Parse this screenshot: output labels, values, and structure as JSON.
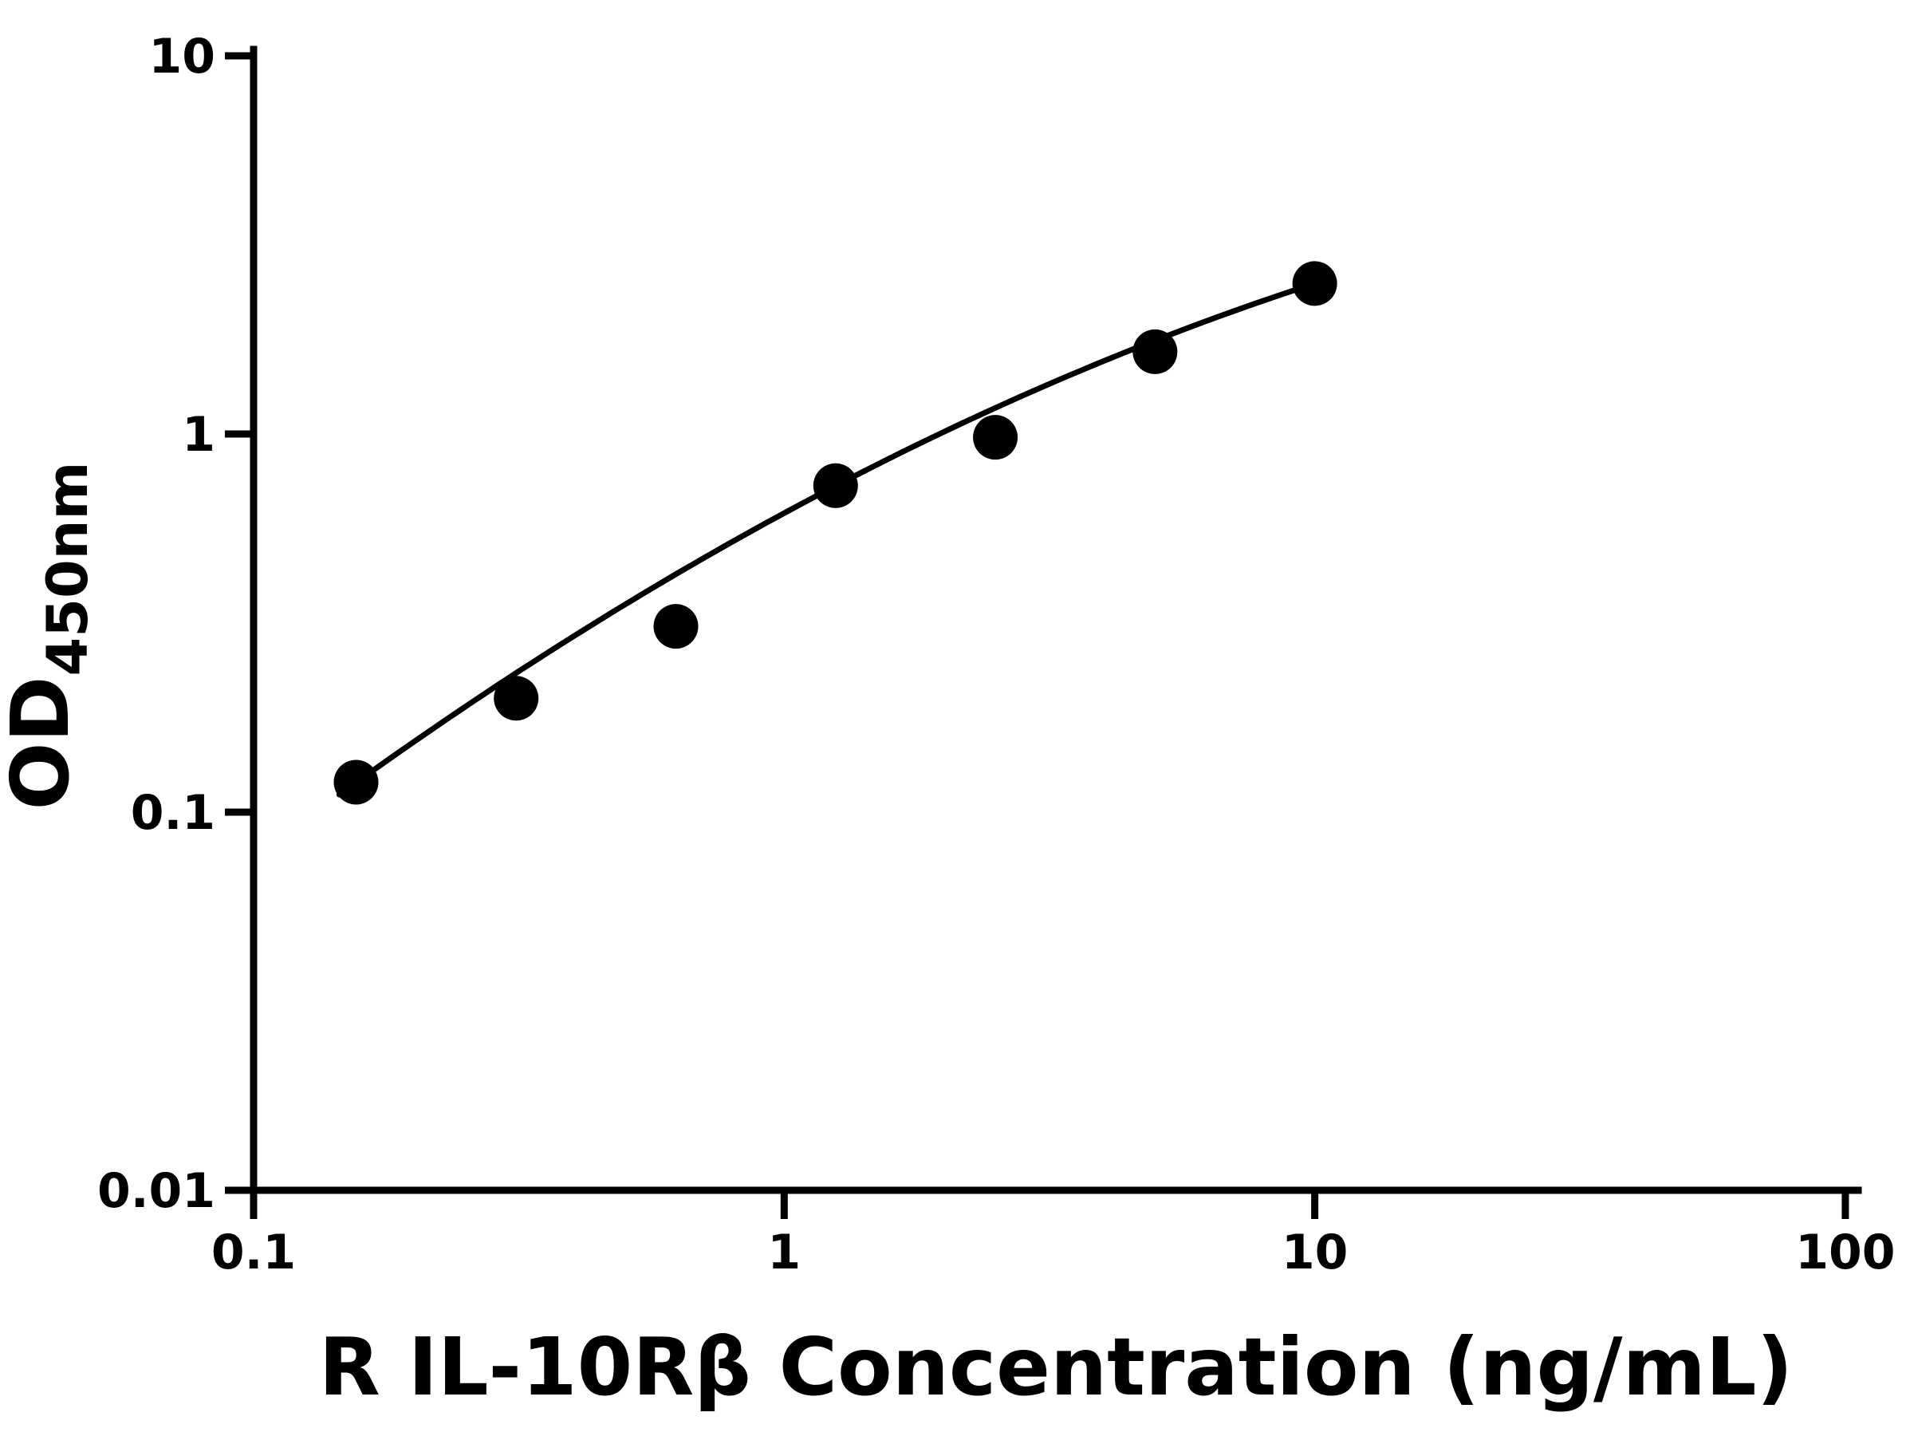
{
  "chart_data": {
    "type": "scatter",
    "title": "",
    "xlabel": "R IL-10Rβ Concentration (ng/mL)",
    "ylabel": "OD450nm",
    "ylabel_parts": {
      "main": "OD",
      "subscript": "450nm"
    },
    "x_scale": "log",
    "y_scale": "log",
    "xlim": [
      0.1,
      100
    ],
    "ylim": [
      0.01,
      10
    ],
    "x_ticks": [
      0.1,
      1,
      10,
      100
    ],
    "x_tick_labels": [
      "0.1",
      "1",
      "10",
      "100"
    ],
    "y_ticks": [
      0.01,
      0.1,
      1,
      10
    ],
    "y_tick_labels": [
      "0.01",
      "0.1",
      "1",
      "10"
    ],
    "grid": false,
    "legend": "none",
    "background_color": "#ffffff",
    "axis_color": "#000000",
    "marker_color": "#000000",
    "line_color": "#000000",
    "points": [
      {
        "x": 0.156,
        "y": 0.12
      },
      {
        "x": 0.3125,
        "y": 0.2
      },
      {
        "x": 0.625,
        "y": 0.31
      },
      {
        "x": 1.25,
        "y": 0.73
      },
      {
        "x": 2.5,
        "y": 0.98
      },
      {
        "x": 5,
        "y": 1.65
      },
      {
        "x": 10,
        "y": 2.5
      }
    ],
    "fit_curve": {
      "type": "quadratic_loglog",
      "coeffs": [
        -0.2093,
        0.7599,
        -0.1526
      ],
      "x_range": [
        0.145,
        10
      ]
    }
  }
}
